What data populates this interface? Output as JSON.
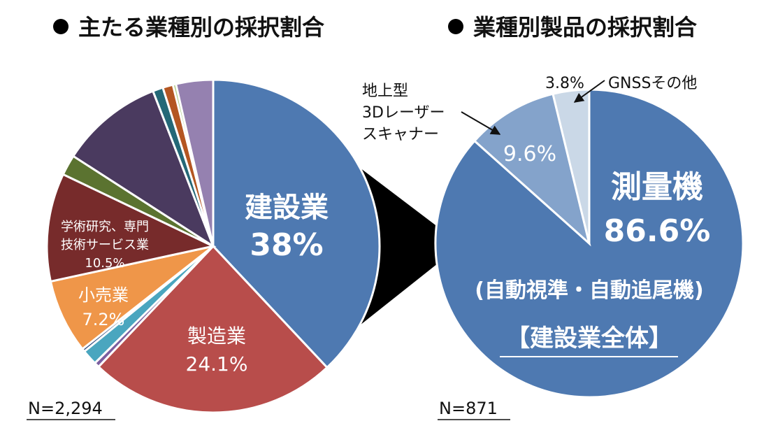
{
  "chart_data": [
    {
      "type": "pie",
      "title": "● 主たる業種別の採択割合",
      "note": "N=2,294",
      "slices": [
        {
          "label": "建設業",
          "value": 38.0,
          "value_label": "38%",
          "color": "#4e79b1"
        },
        {
          "label": "製造業",
          "value": 24.1,
          "value_label": "24.1%",
          "color": "#b84d4b"
        },
        {
          "label": "",
          "value": 0.5,
          "color": "#7b5fa0"
        },
        {
          "label": "",
          "value": 1.5,
          "color": "#4aa6bf"
        },
        {
          "label": "",
          "value": 0.3,
          "color": "#2e4a7e"
        },
        {
          "label": "小売業",
          "value": 7.2,
          "value_label": "7.2%",
          "color": "#ef9649"
        },
        {
          "label": "学術研究、専門技術サービス業",
          "value": 10.5,
          "value_label": "10.5%",
          "color": "#772b2b"
        },
        {
          "label": "",
          "value": 2.0,
          "color": "#5b7330"
        },
        {
          "label": "",
          "value": 10.0,
          "color": "#4a3a5f"
        },
        {
          "label": "",
          "value": 1.0,
          "color": "#246877"
        },
        {
          "label": "",
          "value": 1.0,
          "color": "#b45622"
        },
        {
          "label": "",
          "value": 0.3,
          "color": "#a9c97a"
        },
        {
          "label": "",
          "value": 3.6,
          "color": "#9581b0"
        }
      ]
    },
    {
      "type": "pie",
      "title": "● 業種別製品の採択割合",
      "note": "N=871",
      "subset_label": "【建設業全体】",
      "slices": [
        {
          "label": "測量機",
          "sublabel": "(自動視準・自動追尾機)",
          "value": 86.6,
          "value_label": "86.6%",
          "color": "#4e79b1"
        },
        {
          "label": "地上型3Dレーザースキャナー",
          "label_lines": [
            "地上型",
            "3Dレーザー",
            "スキャナー"
          ],
          "value": 9.6,
          "value_label": "9.6%",
          "color": "#84a3cb"
        },
        {
          "label": "GNSSその他",
          "value": 3.8,
          "value_label": "3.8%",
          "color": "#cad8e7"
        }
      ]
    }
  ]
}
